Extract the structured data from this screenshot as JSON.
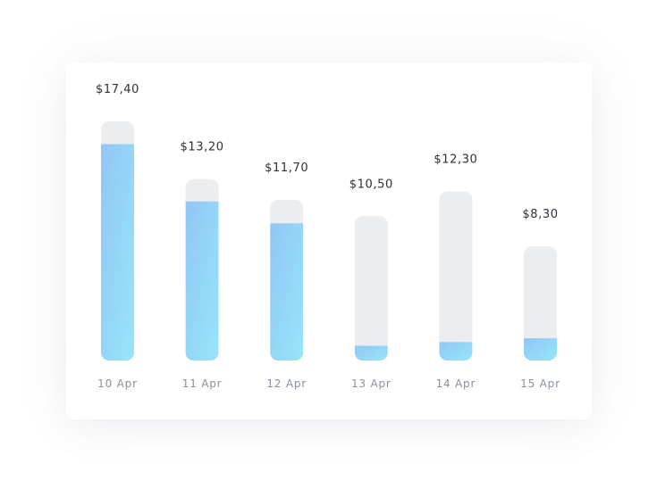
{
  "chart_data": {
    "type": "bar",
    "categories": [
      "10 Apr",
      "11 Apr",
      "12 Apr",
      "13 Apr",
      "14 Apr",
      "15 Apr"
    ],
    "value_labels": [
      "$17,40",
      "$13,20",
      "$11,70",
      "$10,50",
      "$12,30",
      "$8,30"
    ],
    "values": [
      17.4,
      13.2,
      11.7,
      10.5,
      12.3,
      8.3
    ],
    "fill_fraction": [
      0.905,
      0.877,
      0.853,
      0.102,
      0.109,
      0.195
    ],
    "ylim": [
      0,
      20
    ],
    "grid": false,
    "legend": "none",
    "colors": {
      "track": "#ecedef",
      "fill_top": "#93c5f6",
      "fill_bottom": "#95e6f8",
      "value_text": "#2c2f36",
      "category_text": "#8a909c"
    }
  }
}
